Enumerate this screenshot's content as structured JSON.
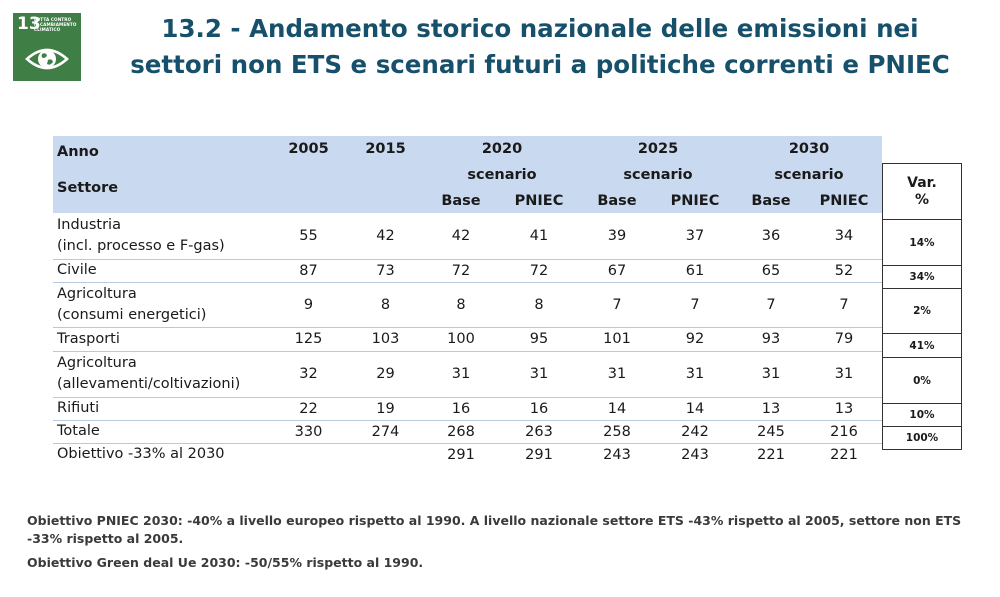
{
  "badge": {
    "number": "13",
    "line1": "LOTTA CONTRO",
    "line2": "IL CAMBIAMENTO",
    "line3": "CLIMATICO",
    "color": "#3f7e44"
  },
  "title": {
    "line1": "13.2 - Andamento storico nazionale delle emissioni nei",
    "line2": "settori non ETS e scenari futuri a politiche correnti e PNIEC"
  },
  "table": {
    "header": {
      "anno": "Anno",
      "settore": "Settore",
      "years": [
        "2005",
        "2015",
        "2020",
        "2025",
        "2030"
      ],
      "scenario": "scenario",
      "base": "Base",
      "pniec": "PNIEC"
    },
    "rows": [
      {
        "label1": "Industria",
        "label2": "(incl. processo e F-gas)",
        "values": [
          "55",
          "42",
          "42",
          "41",
          "39",
          "37",
          "36",
          "34"
        ]
      },
      {
        "label1": "Civile",
        "label2": "",
        "values": [
          "87",
          "73",
          "72",
          "72",
          "67",
          "61",
          "65",
          "52"
        ]
      },
      {
        "label1": "Agricoltura",
        "label2": "(consumi energetici)",
        "values": [
          "9",
          "8",
          "8",
          "8",
          "7",
          "7",
          "7",
          "7"
        ]
      },
      {
        "label1": "Trasporti",
        "label2": "",
        "values": [
          "125",
          "103",
          "100",
          "95",
          "101",
          "92",
          "93",
          "79"
        ]
      },
      {
        "label1": "Agricoltura",
        "label2": "(allevamenti/coltivazioni)",
        "values": [
          "32",
          "29",
          "31",
          "31",
          "31",
          "31",
          "31",
          "31"
        ]
      },
      {
        "label1": "Rifiuti",
        "label2": "",
        "values": [
          "22",
          "19",
          "16",
          "16",
          "14",
          "14",
          "13",
          "13"
        ]
      },
      {
        "label1": "Totale",
        "label2": "",
        "values": [
          "330",
          "274",
          "268",
          "263",
          "258",
          "242",
          "245",
          "216"
        ]
      },
      {
        "label1": "Obiettivo -33% al 2030",
        "label2": "",
        "values": [
          "",
          "",
          "291",
          "291",
          "243",
          "243",
          "221",
          "221"
        ]
      }
    ]
  },
  "var": {
    "header1": "Var.",
    "header2": "%",
    "values": [
      "14%",
      "34%",
      "2%",
      "41%",
      "0%",
      "10%",
      "100%"
    ]
  },
  "notes": {
    "line1": "Obiettivo PNIEC 2030: -40% a livello europeo rispetto al 1990. A livello nazionale settore ETS -43% rispetto al 2005, settore non ETS -33% rispetto al 2005.",
    "line2": "Obiettivo Green deal Ue 2030: -50/55% rispetto al 1990."
  }
}
